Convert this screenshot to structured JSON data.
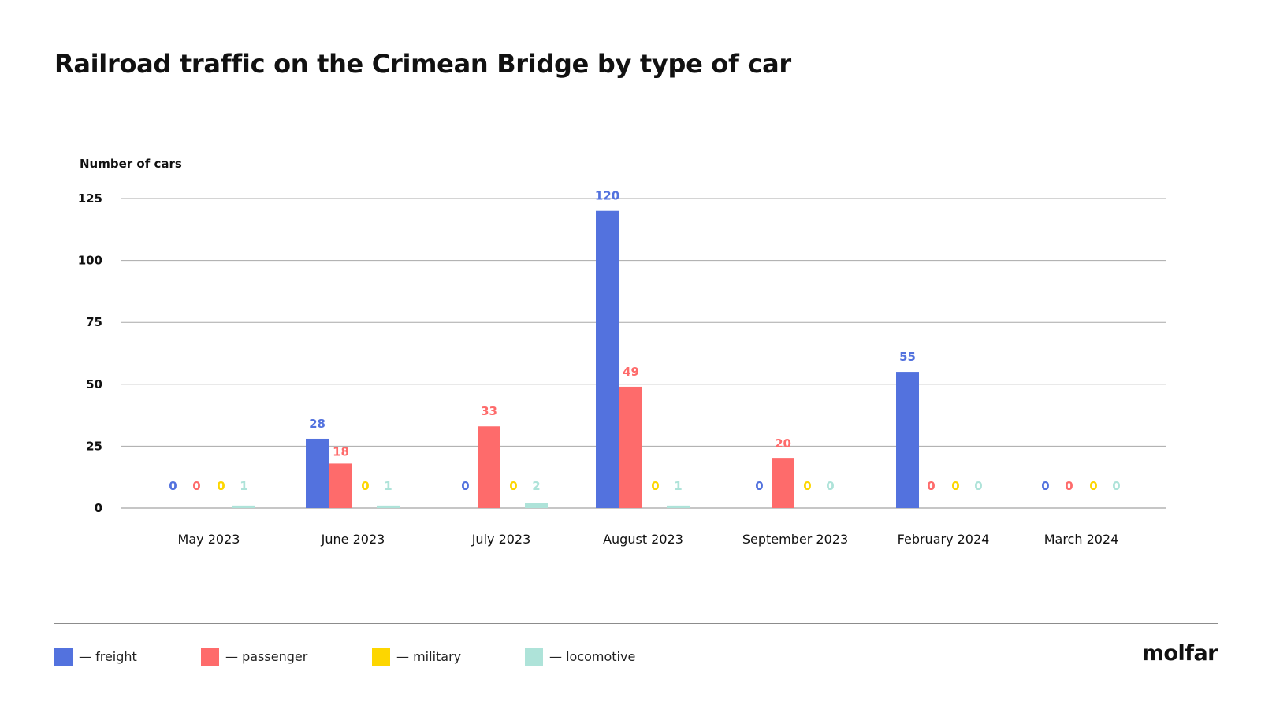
{
  "brand": "molfar",
  "colors": {
    "freight": "#5372de",
    "passenger": "#fe6b6b",
    "military": "#fdd600",
    "locomotive": "#aee3d9",
    "grid": "#a8a8a8",
    "text": "#111111"
  },
  "chart_data": {
    "type": "bar",
    "title": "Railroad traffic on the Crimean Bridge by type of car",
    "ylabel": "Number of cars",
    "xlabel": "",
    "ylim": [
      0,
      125
    ],
    "yticks": [
      "0",
      "25",
      "50",
      "75",
      "100",
      "125"
    ],
    "grid": true,
    "legend_position": "bottom-left",
    "categories": [
      "May 2023",
      "June 2023",
      "July 2023",
      "August 2023",
      "September 2023",
      "February 2024",
      "March 2024"
    ],
    "series": [
      {
        "name": "freight",
        "legend_label": "— freight",
        "color": "#5372de",
        "values": [
          0,
          28,
          0,
          120,
          0,
          55,
          0
        ]
      },
      {
        "name": "passenger",
        "legend_label": "— passenger",
        "color": "#fe6b6b",
        "values": [
          0,
          18,
          33,
          49,
          20,
          0,
          0
        ]
      },
      {
        "name": "military",
        "legend_label": "— military",
        "color": "#fdd600",
        "values": [
          0,
          0,
          0,
          0,
          0,
          0,
          0
        ]
      },
      {
        "name": "locomotive",
        "legend_label": "— locomotive",
        "color": "#aee3d9",
        "values": [
          1,
          1,
          2,
          1,
          0,
          0,
          0
        ]
      }
    ]
  }
}
